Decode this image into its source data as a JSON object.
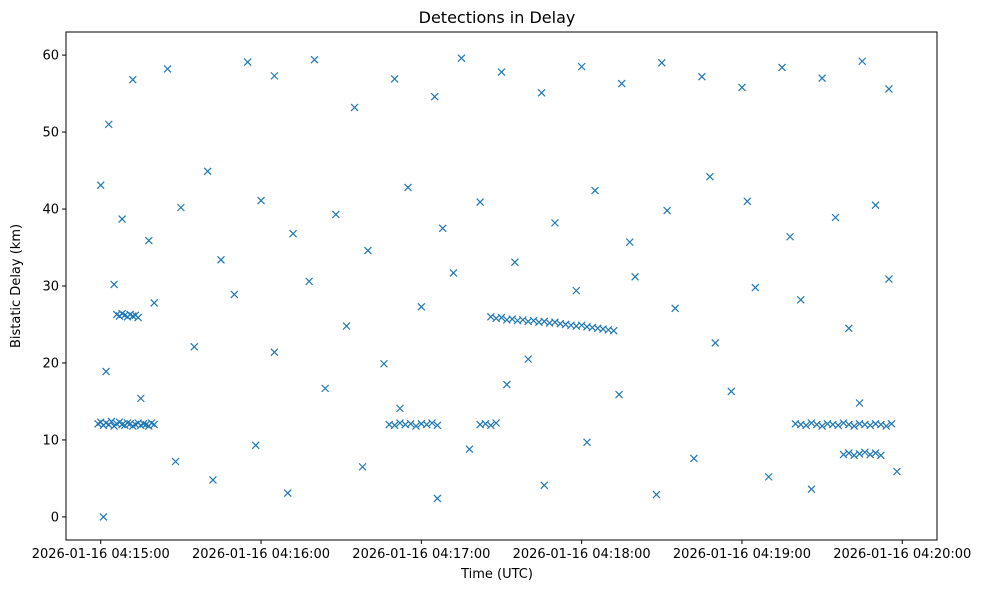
{
  "chart_data": {
    "type": "scatter",
    "title": "Detections in Delay",
    "xlabel": "Time (UTC)",
    "ylabel": "Bistatic Delay (km)",
    "x_type": "time",
    "xlim": [
      "2026-01-16 04:14:47",
      "2026-01-16 04:20:13"
    ],
    "ylim": [
      -3,
      63
    ],
    "x_ticks": [
      "2026-01-16 04:15:00",
      "2026-01-16 04:16:00",
      "2026-01-16 04:17:00",
      "2026-01-16 04:18:00",
      "2026-01-16 04:19:00",
      "2026-01-16 04:20:00"
    ],
    "y_ticks": [
      0,
      10,
      20,
      30,
      40,
      50,
      60
    ],
    "marker": "x",
    "color": "#1f77b4",
    "grid": false,
    "series": [
      {
        "points": [
          [
            "04:14:59",
            12.1
          ],
          [
            "04:15:00",
            12.3
          ],
          [
            "04:15:01",
            11.9
          ],
          [
            "04:15:02",
            12.2
          ],
          [
            "04:15:03",
            12.0
          ],
          [
            "04:15:04",
            12.4
          ],
          [
            "04:15:05",
            11.8
          ],
          [
            "04:15:06",
            12.1
          ],
          [
            "04:15:07",
            12.3
          ],
          [
            "04:15:08",
            12.0
          ],
          [
            "04:15:09",
            11.9
          ],
          [
            "04:15:10",
            12.2
          ],
          [
            "04:15:11",
            12.1
          ],
          [
            "04:15:12",
            11.8
          ],
          [
            "04:15:13",
            12.0
          ],
          [
            "04:15:14",
            12.2
          ],
          [
            "04:15:15",
            11.9
          ],
          [
            "04:15:16",
            12.1
          ],
          [
            "04:15:17",
            12.0
          ],
          [
            "04:15:18",
            11.8
          ],
          [
            "04:15:19",
            12.2
          ],
          [
            "04:15:20",
            12.0
          ],
          [
            "04:15:06",
            26.3
          ],
          [
            "04:15:07",
            26.1
          ],
          [
            "04:15:08",
            26.4
          ],
          [
            "04:15:09",
            26.2
          ],
          [
            "04:15:10",
            26.0
          ],
          [
            "04:15:11",
            26.3
          ],
          [
            "04:15:12",
            26.1
          ],
          [
            "04:15:13",
            26.2
          ],
          [
            "04:15:14",
            25.9
          ],
          [
            "04:16:48",
            12.0
          ],
          [
            "04:16:50",
            11.9
          ],
          [
            "04:16:52",
            12.2
          ],
          [
            "04:16:54",
            12.0
          ],
          [
            "04:16:56",
            12.1
          ],
          [
            "04:16:58",
            11.8
          ],
          [
            "04:17:00",
            12.1
          ],
          [
            "04:17:02",
            12.0
          ],
          [
            "04:17:04",
            12.2
          ],
          [
            "04:17:06",
            11.9
          ],
          [
            "04:17:22",
            12.0
          ],
          [
            "04:17:24",
            12.1
          ],
          [
            "04:17:26",
            11.9
          ],
          [
            "04:17:28",
            12.2
          ],
          [
            "04:17:26",
            26.0
          ],
          [
            "04:17:28",
            25.8
          ],
          [
            "04:17:30",
            25.9
          ],
          [
            "04:17:32",
            25.6
          ],
          [
            "04:17:34",
            25.7
          ],
          [
            "04:17:36",
            25.5
          ],
          [
            "04:17:38",
            25.6
          ],
          [
            "04:17:40",
            25.4
          ],
          [
            "04:17:42",
            25.5
          ],
          [
            "04:17:44",
            25.3
          ],
          [
            "04:17:46",
            25.4
          ],
          [
            "04:17:48",
            25.2
          ],
          [
            "04:17:50",
            25.3
          ],
          [
            "04:17:52",
            25.1
          ],
          [
            "04:17:54",
            25.0
          ],
          [
            "04:17:56",
            24.9
          ],
          [
            "04:17:58",
            24.8
          ],
          [
            "04:18:00",
            24.9
          ],
          [
            "04:18:02",
            24.7
          ],
          [
            "04:18:04",
            24.6
          ],
          [
            "04:18:06",
            24.5
          ],
          [
            "04:18:08",
            24.4
          ],
          [
            "04:18:10",
            24.3
          ],
          [
            "04:18:12",
            24.2
          ],
          [
            "04:19:20",
            12.1
          ],
          [
            "04:19:22",
            12.0
          ],
          [
            "04:19:24",
            11.9
          ],
          [
            "04:19:26",
            12.2
          ],
          [
            "04:19:28",
            12.0
          ],
          [
            "04:19:30",
            11.8
          ],
          [
            "04:19:32",
            12.1
          ],
          [
            "04:19:34",
            12.0
          ],
          [
            "04:19:36",
            11.9
          ],
          [
            "04:19:38",
            12.2
          ],
          [
            "04:19:40",
            12.0
          ],
          [
            "04:19:42",
            11.8
          ],
          [
            "04:19:44",
            12.1
          ],
          [
            "04:19:46",
            12.0
          ],
          [
            "04:19:48",
            11.9
          ],
          [
            "04:19:50",
            12.1
          ],
          [
            "04:19:52",
            12.0
          ],
          [
            "04:19:54",
            11.8
          ],
          [
            "04:19:56",
            12.1
          ],
          [
            "04:19:38",
            8.1
          ],
          [
            "04:19:40",
            8.3
          ],
          [
            "04:19:42",
            8.0
          ],
          [
            "04:19:44",
            8.2
          ],
          [
            "04:19:46",
            8.4
          ],
          [
            "04:19:48",
            8.1
          ],
          [
            "04:19:50",
            8.3
          ],
          [
            "04:19:52",
            8.0
          ],
          [
            "04:15:03",
            51.0
          ],
          [
            "04:15:12",
            56.8
          ],
          [
            "04:15:25",
            58.2
          ],
          [
            "04:15:40",
            44.9
          ],
          [
            "04:15:55",
            59.1
          ],
          [
            "04:16:05",
            57.3
          ],
          [
            "04:16:20",
            59.4
          ],
          [
            "04:16:35",
            53.2
          ],
          [
            "04:16:50",
            56.9
          ],
          [
            "04:17:05",
            54.6
          ],
          [
            "04:17:15",
            59.6
          ],
          [
            "04:17:30",
            57.8
          ],
          [
            "04:17:45",
            55.1
          ],
          [
            "04:18:00",
            58.5
          ],
          [
            "04:18:15",
            56.3
          ],
          [
            "04:18:30",
            59.0
          ],
          [
            "04:18:45",
            57.2
          ],
          [
            "04:19:00",
            55.8
          ],
          [
            "04:19:15",
            58.4
          ],
          [
            "04:19:30",
            57.0
          ],
          [
            "04:19:45",
            59.2
          ],
          [
            "04:19:55",
            55.6
          ],
          [
            "04:15:00",
            43.1
          ],
          [
            "04:15:08",
            38.7
          ],
          [
            "04:15:18",
            35.9
          ],
          [
            "04:15:30",
            40.2
          ],
          [
            "04:15:45",
            33.4
          ],
          [
            "04:16:00",
            41.1
          ],
          [
            "04:16:12",
            36.8
          ],
          [
            "04:16:28",
            39.3
          ],
          [
            "04:16:40",
            34.6
          ],
          [
            "04:16:55",
            42.8
          ],
          [
            "04:17:08",
            37.5
          ],
          [
            "04:17:22",
            40.9
          ],
          [
            "04:17:35",
            33.1
          ],
          [
            "04:17:50",
            38.2
          ],
          [
            "04:18:05",
            42.4
          ],
          [
            "04:18:18",
            35.7
          ],
          [
            "04:18:32",
            39.8
          ],
          [
            "04:18:48",
            44.2
          ],
          [
            "04:19:02",
            41.0
          ],
          [
            "04:19:18",
            36.4
          ],
          [
            "04:19:35",
            38.9
          ],
          [
            "04:19:50",
            40.5
          ],
          [
            "04:15:05",
            30.2
          ],
          [
            "04:15:20",
            27.8
          ],
          [
            "04:15:35",
            22.1
          ],
          [
            "04:15:50",
            28.9
          ],
          [
            "04:16:05",
            21.4
          ],
          [
            "04:16:18",
            30.6
          ],
          [
            "04:16:32",
            24.8
          ],
          [
            "04:16:46",
            19.9
          ],
          [
            "04:17:00",
            27.3
          ],
          [
            "04:17:12",
            31.7
          ],
          [
            "04:17:40",
            20.5
          ],
          [
            "04:17:58",
            29.4
          ],
          [
            "04:18:20",
            31.2
          ],
          [
            "04:18:35",
            27.1
          ],
          [
            "04:18:50",
            22.6
          ],
          [
            "04:19:05",
            29.8
          ],
          [
            "04:19:22",
            28.2
          ],
          [
            "04:19:40",
            24.5
          ],
          [
            "04:19:55",
            30.9
          ],
          [
            "04:15:02",
            18.9
          ],
          [
            "04:15:15",
            15.4
          ],
          [
            "04:15:28",
            7.2
          ],
          [
            "04:15:42",
            4.8
          ],
          [
            "04:15:58",
            9.3
          ],
          [
            "04:16:10",
            3.1
          ],
          [
            "04:16:24",
            16.7
          ],
          [
            "04:16:38",
            6.5
          ],
          [
            "04:16:52",
            14.1
          ],
          [
            "04:17:06",
            2.4
          ],
          [
            "04:17:18",
            8.8
          ],
          [
            "04:17:32",
            17.2
          ],
          [
            "04:17:46",
            4.1
          ],
          [
            "04:18:02",
            9.7
          ],
          [
            "04:18:14",
            15.9
          ],
          [
            "04:18:28",
            2.9
          ],
          [
            "04:18:42",
            7.6
          ],
          [
            "04:18:56",
            16.3
          ],
          [
            "04:19:10",
            5.2
          ],
          [
            "04:19:26",
            3.6
          ],
          [
            "04:19:44",
            14.8
          ],
          [
            "04:19:58",
            5.9
          ],
          [
            "04:15:01",
            0.0
          ]
        ]
      }
    ]
  }
}
